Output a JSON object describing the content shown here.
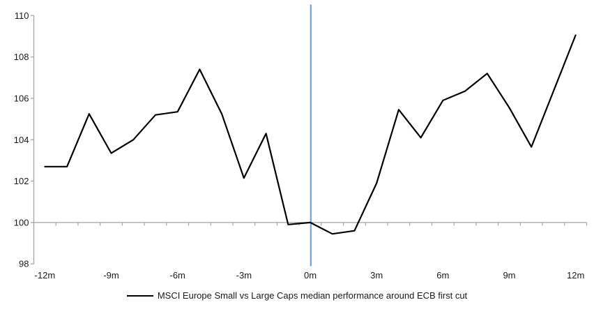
{
  "chart_data": {
    "type": "line",
    "title": "",
    "xlabel": "",
    "ylabel": "",
    "categories": [
      "-12m",
      "-11m",
      "-10m",
      "-9m",
      "-8m",
      "-7m",
      "-6m",
      "-5m",
      "-4m",
      "-3m",
      "-2m",
      "-1m",
      "0m",
      "1m",
      "2m",
      "3m",
      "4m",
      "5m",
      "6m",
      "7m",
      "8m",
      "9m",
      "10m",
      "11m",
      "12m"
    ],
    "series": [
      {
        "name": "MSCI Europe Small vs Large Caps median performance around ECB first cut",
        "values": [
          102.7,
          102.7,
          105.25,
          103.35,
          104.0,
          105.2,
          105.35,
          107.4,
          105.25,
          102.15,
          104.3,
          99.9,
          100.0,
          99.45,
          99.6,
          101.9,
          105.45,
          104.1,
          105.9,
          106.35,
          107.2,
          105.55,
          103.65,
          106.35,
          109.05
        ]
      }
    ],
    "ylim": [
      98,
      110
    ],
    "y_ticks": [
      98,
      100,
      102,
      104,
      106,
      108,
      110
    ],
    "x_tick_labels": [
      "-12m",
      "-9m",
      "-6m",
      "-3m",
      "0m",
      "3m",
      "6m",
      "9m",
      "12m"
    ],
    "x_tick_label_indices": [
      0,
      3,
      6,
      9,
      12,
      15,
      18,
      21,
      24
    ],
    "baseline_value": 100,
    "event_line_category": "0m",
    "event_line_index": 12,
    "grid": "baseline-only",
    "legend_position": "bottom"
  },
  "legend": {
    "label": "MSCI Europe Small vs Large Caps median performance around ECB first cut"
  },
  "colors": {
    "series_line": "#000000",
    "event_line": "#7AA6D8",
    "axis": "#A6A6A6",
    "text": "#1A1A1A",
    "background": "#FFFFFF"
  }
}
